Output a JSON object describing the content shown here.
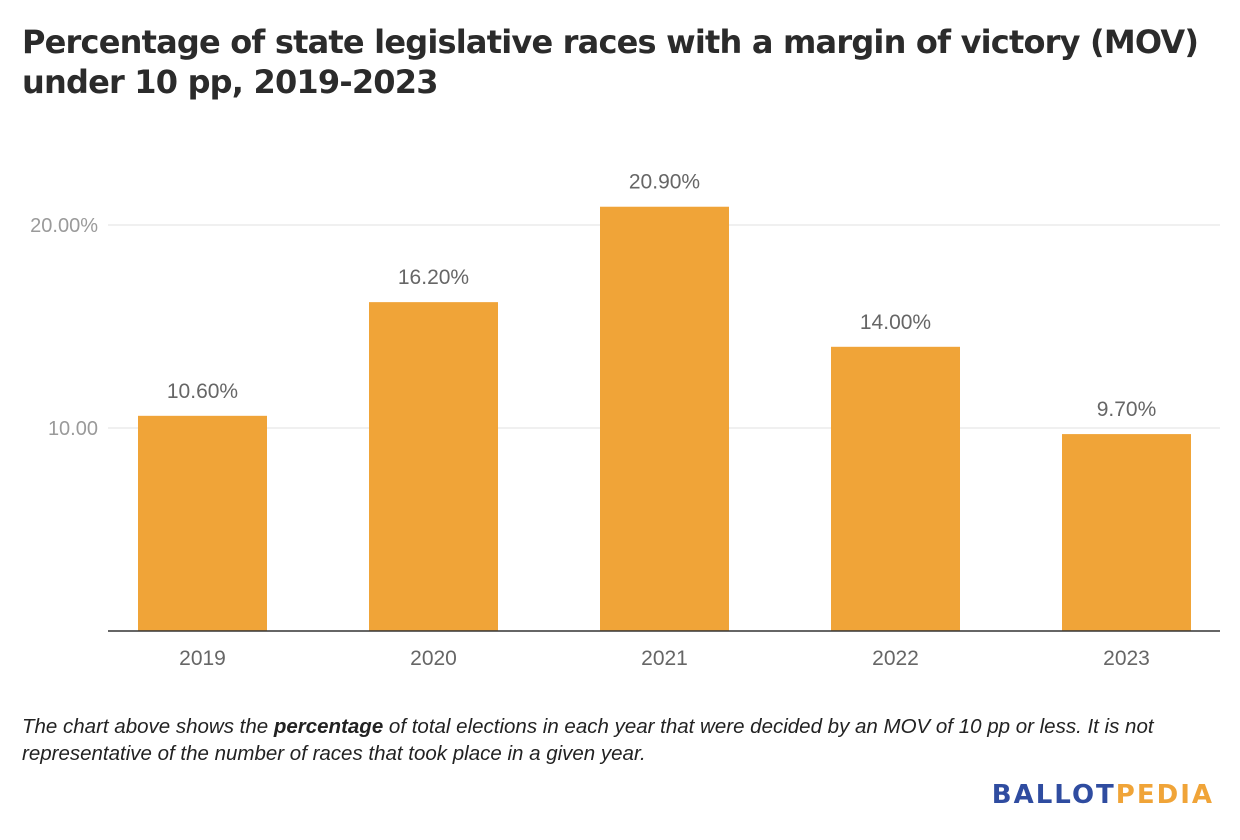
{
  "title": "Percentage of state legislative races with a margin of victory (MOV) under 10 pp, 2019-2023",
  "note": {
    "before": "The chart above shows the ",
    "emphasis": "percentage",
    "after": " of total elections in each year that were decided by an MOV of 10 pp or less. It is not representative of the number of races that took place in a given year."
  },
  "logo": {
    "part1": "BALLOT",
    "part2": "PEDIA",
    "color1": "#2f4ca0",
    "color2": "#f0a438"
  },
  "chart_data": {
    "type": "bar",
    "categories": [
      "2019",
      "2020",
      "2021",
      "2022",
      "2023"
    ],
    "values": [
      10.6,
      16.2,
      20.9,
      14.0,
      9.7
    ],
    "data_labels": [
      "10.60%",
      "16.20%",
      "20.90%",
      "14.00%",
      "9.70%"
    ],
    "yticks": [
      {
        "value": 10,
        "label": "10.00"
      },
      {
        "value": 20,
        "label": "20.00%"
      }
    ],
    "ylim": [
      0,
      20
    ],
    "grid": true,
    "bar_color": "#f0a438",
    "xlabel": "",
    "ylabel": ""
  }
}
